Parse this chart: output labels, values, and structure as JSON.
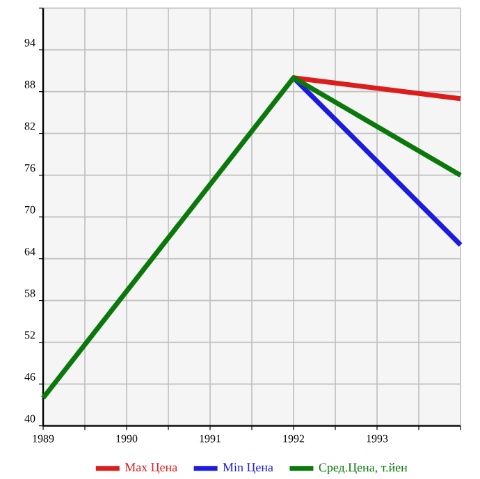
{
  "chart_data": {
    "type": "line",
    "x": [
      1989,
      1992,
      1994
    ],
    "series": [
      {
        "name": "Max Цена",
        "color": "#dd1c1c",
        "values": [
          null,
          90,
          87
        ]
      },
      {
        "name": "Min Цена",
        "color": "#1c1cdd",
        "values": [
          null,
          90,
          66
        ]
      },
      {
        "name": "Сред.Цена, т.йен",
        "color": "#0a780a",
        "values": [
          44,
          90,
          76
        ]
      }
    ],
    "xlim": [
      1989,
      1994
    ],
    "xticks": [
      1989,
      1990,
      1991,
      1992,
      1993,
      {
        "value": 1994,
        "label": null
      }
    ],
    "ylim": [
      40,
      100
    ],
    "yticks": [
      40,
      46,
      52,
      58,
      64,
      70,
      76,
      82,
      88,
      94,
      {
        "value": 100,
        "label": null
      }
    ],
    "grid": true,
    "legend": "bottom",
    "marker": "none",
    "line_style": "solid"
  }
}
